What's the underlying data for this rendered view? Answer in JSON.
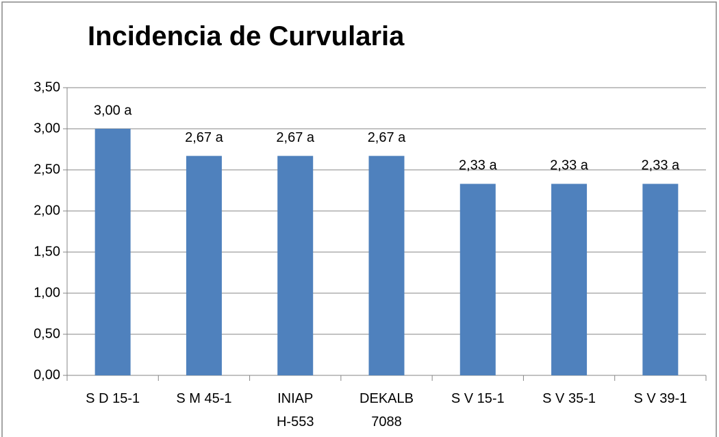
{
  "chart_data": {
    "type": "bar",
    "title": "Incidencia de Curvularia",
    "categories": [
      "S D 15-1",
      "S M 45-1",
      "INIAP\nH-553",
      "DEKALB\n7088",
      "S V 15-1",
      "S V 35-1",
      "S V 39-1"
    ],
    "values": [
      3.0,
      2.67,
      2.67,
      2.67,
      2.33,
      2.33,
      2.33
    ],
    "value_labels": [
      "3,00 a",
      "2,67 a",
      "2,67 a",
      "2,67 a",
      "2,33 a",
      "2,33 a",
      "2,33 a"
    ],
    "color": "#4f81bd",
    "ylim": [
      0,
      3.5
    ],
    "yticks": [
      {
        "value": 0,
        "label": "0,00"
      },
      {
        "value": 0.5,
        "label": "0,50"
      },
      {
        "value": 1,
        "label": "1,00"
      },
      {
        "value": 1.5,
        "label": "1,50"
      },
      {
        "value": 2,
        "label": "2,00"
      },
      {
        "value": 2.5,
        "label": "2,50"
      },
      {
        "value": 3,
        "label": "3,00"
      },
      {
        "value": 3.5,
        "label": "3,50"
      }
    ],
    "grid": true
  }
}
